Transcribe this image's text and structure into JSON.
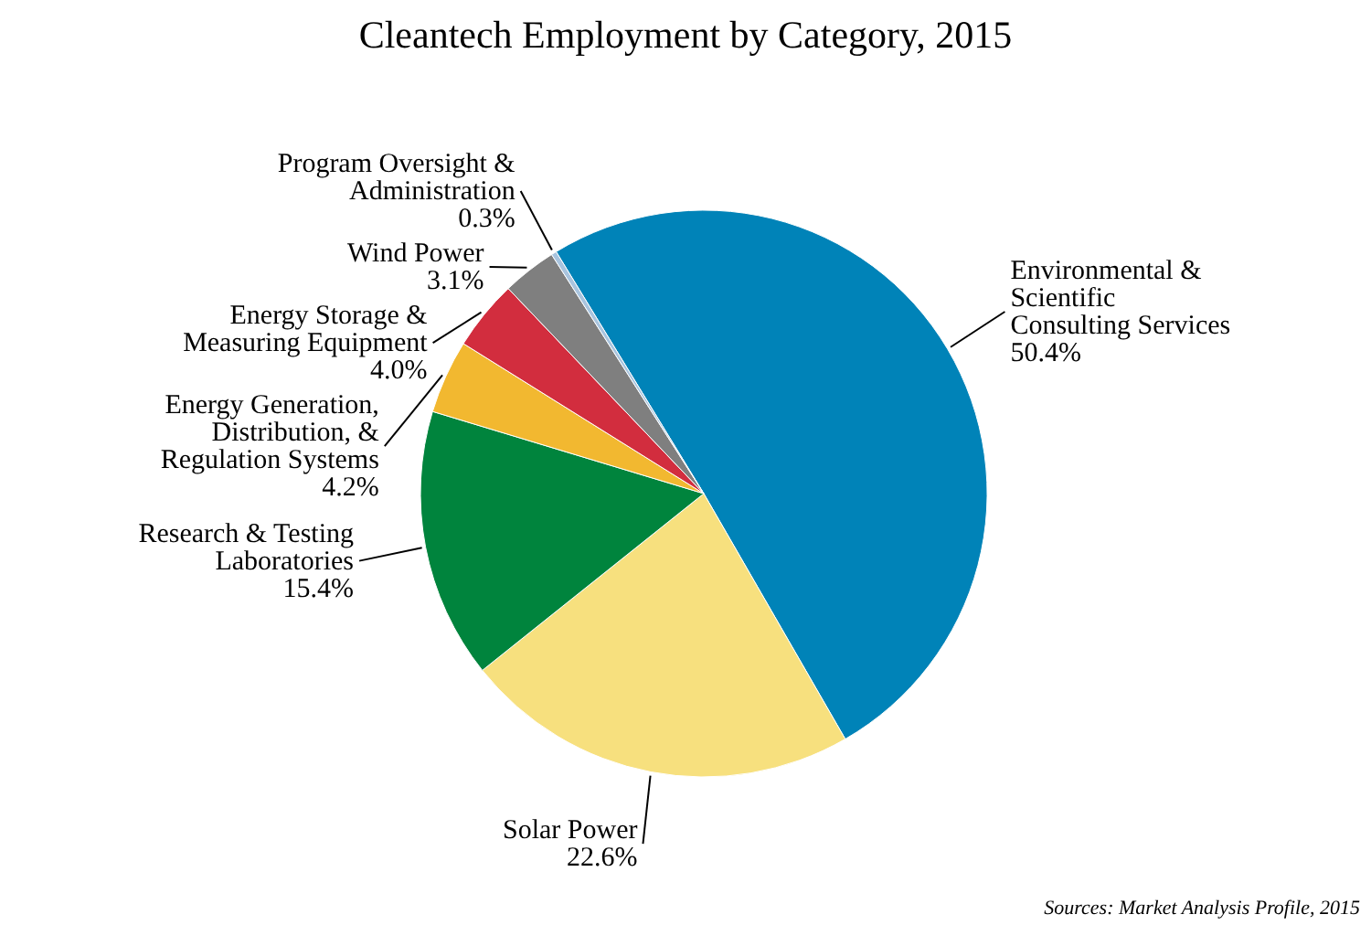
{
  "chart_data": {
    "type": "pie",
    "title": "Cleantech Employment by Category, 2015",
    "categories": [
      "Environmental & Scientific Consulting Services",
      "Solar Power",
      "Research & Testing Laboratories",
      "Energy Generation, Distribution, & Regulation Systems",
      "Energy Storage & Measuring Equipment",
      "Wind Power",
      "Program Oversight & Administration"
    ],
    "values": [
      50.4,
      22.6,
      15.4,
      4.2,
      4.0,
      3.1,
      0.3
    ],
    "colors": [
      "#0083b8",
      "#f7e07e",
      "#00843d",
      "#f2b830",
      "#d22d3e",
      "#7f7f7f",
      "#a9c4de"
    ],
    "value_labels": [
      "50.4%",
      "22.6%",
      "15.4%",
      "4.2%",
      "4.0%",
      "3.1%",
      "0.3%"
    ],
    "legend": false,
    "annotations": [
      "Sources: Market Analysis Profile, 2015"
    ]
  }
}
